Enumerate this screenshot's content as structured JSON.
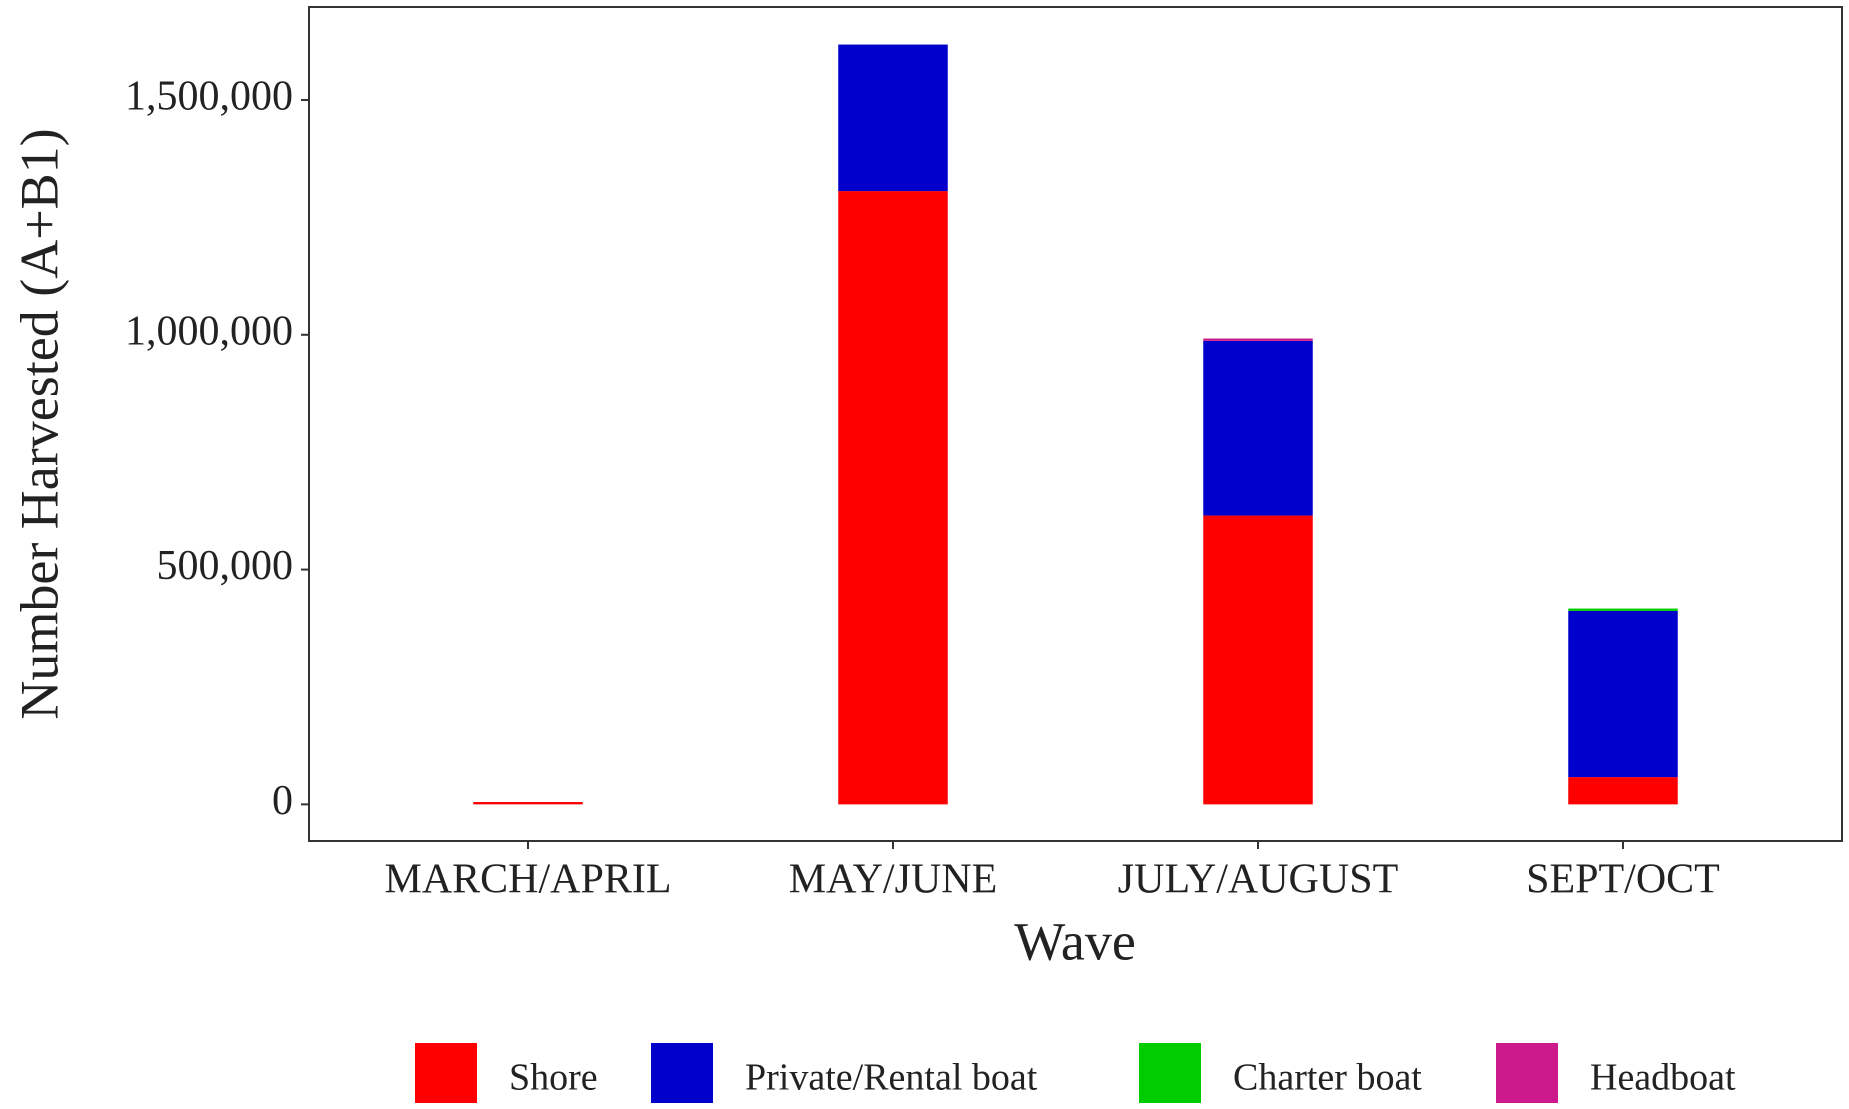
{
  "chart_data": {
    "type": "stacked_bar",
    "x_label": "Wave",
    "y_label": "Number Harvested (A+B1)",
    "categories": [
      "MARCH/APRIL",
      "MAY/JUNE",
      "JULY/AUGUST",
      "SEPT/OCT"
    ],
    "series": [
      {
        "name": "Shore",
        "color": "#ff0000",
        "values": [
          5000,
          1306000,
          615000,
          58000
        ]
      },
      {
        "name": "Private/Rental boat",
        "color": "#0000cc",
        "values": [
          0,
          312000,
          372000,
          354000
        ]
      },
      {
        "name": "Charter boat",
        "color": "#00cc00",
        "values": [
          0,
          0,
          0,
          5000
        ]
      },
      {
        "name": "Headboat",
        "color": "#cc1a8c",
        "values": [
          0,
          0,
          5000,
          0
        ]
      }
    ],
    "ylim": [
      -78000,
      1698000
    ],
    "yticks": [
      0,
      {
        "value": 500000,
        "label": "500,000"
      },
      {
        "value": 1000000,
        "label": "1,000,000"
      },
      {
        "value": 1500000,
        "label": "1,500,000"
      }
    ],
    "grid": false,
    "legend": "bottom"
  }
}
